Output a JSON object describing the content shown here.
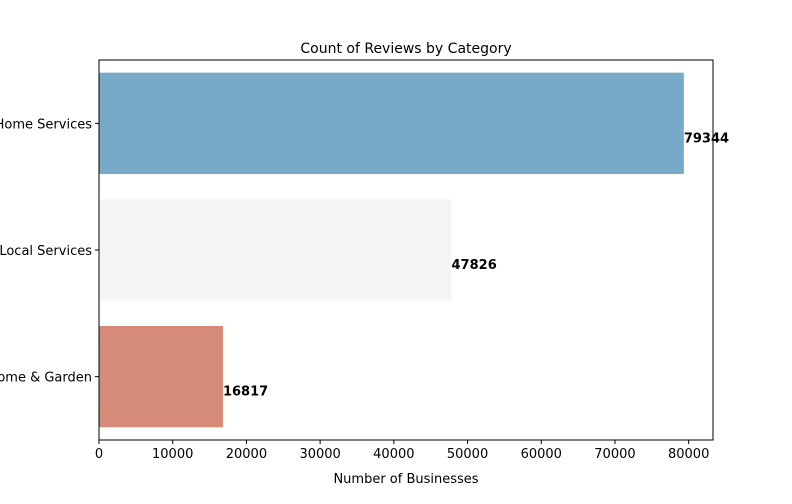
{
  "chart_data": {
    "type": "bar",
    "orientation": "horizontal",
    "title": "Count of Reviews by Category",
    "xlabel": "Number of Businesses",
    "ylabel": "",
    "categories": [
      "Home Services",
      "Local Services",
      "Home & Garden"
    ],
    "values": [
      79344,
      47826,
      16817
    ],
    "data_labels": [
      "79344",
      "47826",
      "16817"
    ],
    "xlim": [
      0,
      83300
    ],
    "xticks": [
      0,
      10000,
      20000,
      30000,
      40000,
      50000,
      60000,
      70000,
      80000
    ],
    "xtick_labels": [
      "0",
      "10000",
      "20000",
      "30000",
      "40000",
      "50000",
      "60000",
      "70000",
      "80000"
    ],
    "bar_colors": [
      "#77aac7",
      "#f5f5f5",
      "#d68b78"
    ],
    "grid": false,
    "legend": "none"
  }
}
